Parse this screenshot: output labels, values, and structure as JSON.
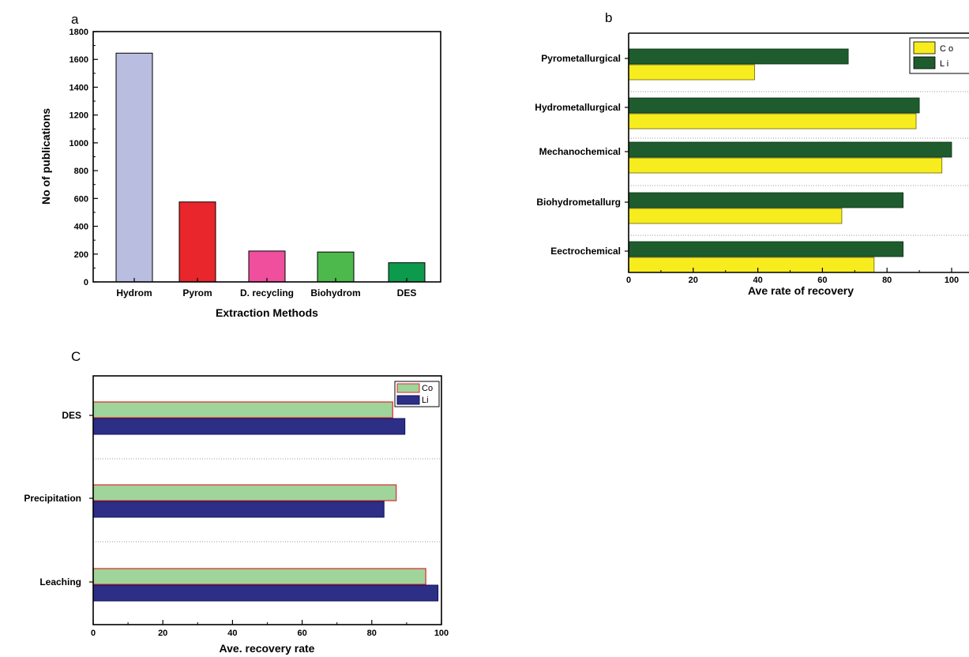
{
  "chart_data": [
    {
      "panel": "a",
      "type": "bar",
      "orientation": "vertical",
      "categories": [
        "Hydrom",
        "Pyrom",
        "D. recycling",
        "Biohydrom",
        "DES"
      ],
      "values": [
        1645,
        575,
        222,
        215,
        138
      ],
      "colors": [
        "#b9bde0",
        "#e8262b",
        "#ef4f9c",
        "#4db84c",
        "#0c9a4c"
      ],
      "xlabel": "Extraction Methods",
      "ylabel": "No of publications",
      "ylim": [
        0,
        1800
      ],
      "yticks": [
        "0",
        "200",
        "400",
        "600",
        "800",
        "1000",
        "1200",
        "1400",
        "1600",
        "1800"
      ],
      "grid": false
    },
    {
      "panel": "b",
      "type": "bar",
      "orientation": "horizontal",
      "categories": [
        "Pyrometallurgical",
        "Hydrometallurgical",
        "Mechanochemical",
        "Biohydrometallurg",
        "Eectrochemical"
      ],
      "series": [
        {
          "name": "C o",
          "values": [
            39,
            89,
            97,
            66,
            76
          ],
          "color": "#f7ec1e"
        },
        {
          "name": "L i",
          "values": [
            68,
            90,
            100,
            85,
            85
          ],
          "color": "#1e5c2d"
        }
      ],
      "xlabel": "Ave rate of recovery",
      "xlim": [
        0,
        105
      ],
      "xticks": [
        "0",
        "20",
        "40",
        "60",
        "80",
        "100"
      ],
      "legend": "top-right",
      "grid": "dotted separators"
    },
    {
      "panel": "C",
      "type": "bar",
      "orientation": "horizontal",
      "categories": [
        "DES",
        "Precipitation",
        "Leaching"
      ],
      "series": [
        {
          "name": "Co",
          "values": [
            86,
            87,
            95.5
          ],
          "color": "#9fd49b",
          "edge": "#e0262b"
        },
        {
          "name": "Li",
          "values": [
            89.5,
            83.5,
            99
          ],
          "color": "#2d2f86",
          "edge": "#101060"
        }
      ],
      "xlabel": "Ave. recovery rate",
      "xlim": [
        0,
        100
      ],
      "xticks": [
        "0",
        "20",
        "40",
        "60",
        "80",
        "100"
      ],
      "legend": "top-right",
      "grid": "dotted separators"
    }
  ]
}
